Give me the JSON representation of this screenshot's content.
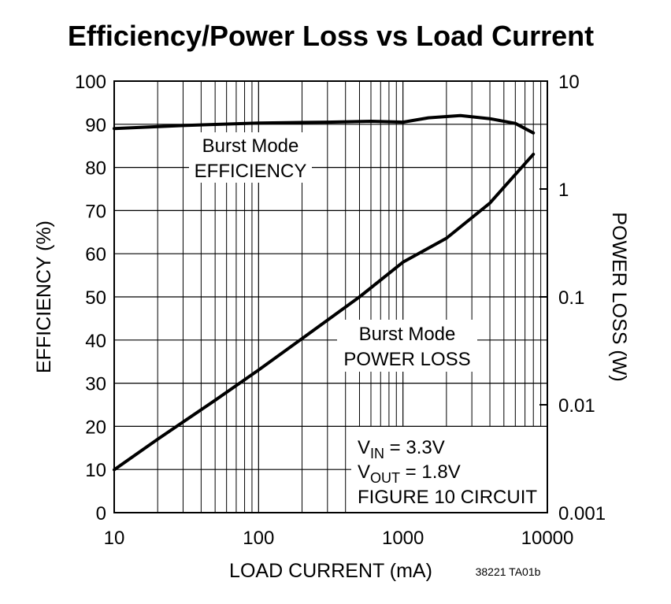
{
  "chart_data": {
    "type": "line",
    "title": "Efficiency/Power Loss vs Load Current",
    "xlabel": "LOAD CURRENT (mA)",
    "ylabel": "EFFICIENCY (%)",
    "y2label": "POWER LOSS (W)",
    "code": "38221 TA01b",
    "xscale": "log",
    "y2scale": "log",
    "grid": true,
    "minor_grid": true,
    "xlim": [
      10,
      10000
    ],
    "xticks": [
      10,
      100,
      1000,
      10000
    ],
    "ylim": [
      0,
      100
    ],
    "yticks": [
      0,
      10,
      20,
      30,
      40,
      50,
      60,
      70,
      80,
      90,
      100
    ],
    "y2lim": [
      0.001,
      10
    ],
    "y2ticks": [
      0.001,
      0.01,
      0.1,
      1,
      10
    ],
    "series": [
      {
        "name": "Burst Mode EFFICIENCY",
        "color": "#000000",
        "axis": "y",
        "x": [
          10,
          30,
          100,
          300,
          600,
          1000,
          1500,
          2500,
          4000,
          6000,
          8000
        ],
        "values": [
          89,
          89.7,
          90.3,
          90.5,
          90.7,
          90.5,
          91.5,
          92,
          91.3,
          90.2,
          88
        ]
      },
      {
        "name": "Burst Mode POWER LOSS",
        "color": "#000000",
        "axis": "y2",
        "x": [
          10,
          20,
          50,
          100,
          200,
          500,
          1000,
          2000,
          4000,
          8000
        ],
        "values": [
          0.0025,
          0.0048,
          0.011,
          0.021,
          0.041,
          0.1,
          0.21,
          0.35,
          0.74,
          2.1
        ]
      }
    ],
    "annotations": {
      "efficiency": [
        "Burst Mode",
        "EFFICIENCY"
      ],
      "power_loss": [
        "Burst Mode",
        "POWER LOSS"
      ],
      "conditions": [
        [
          "V",
          "IN",
          " = 3.3V"
        ],
        [
          "V",
          "OUT",
          " = 1.8V"
        ],
        [
          "FIGURE 10 CIRCUIT"
        ]
      ]
    }
  }
}
